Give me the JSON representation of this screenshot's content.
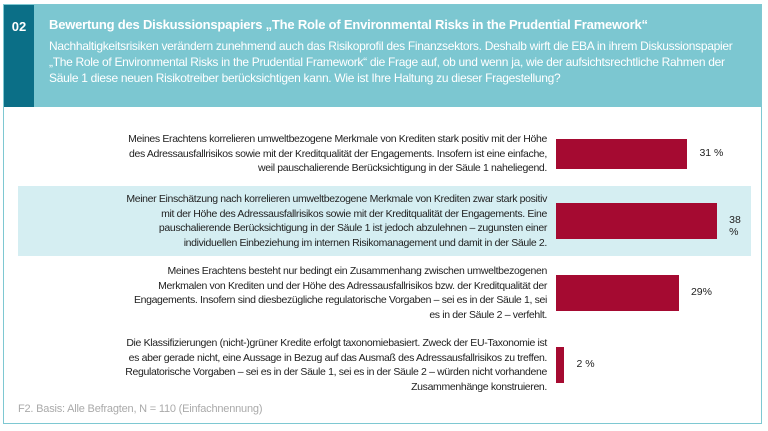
{
  "header": {
    "number": "02",
    "title": "Bewertung des Diskussionspapiers „The Role of Environmental Risks in the Prudential Framework“",
    "subtitle": "Nachhaltigkeitsrisiken verändern zunehmend auch das Risikoprofil des Finanzsektors. Deshalb wirft die EBA in ihrem Diskussionspapier „The Role of Environmental Risks in the Prudential Framework“ die Frage auf, ob und wenn ja, wie der aufsichtsrechtliche Rahmen der Säule 1 diese neuen Risikotreiber berücksichtigen kann. Wie ist Ihre Haltung zu dieser Fragestellung?"
  },
  "chart_data": {
    "type": "bar",
    "orientation": "horizontal",
    "categories": [
      [
        "Meines Erachtens korrelieren umweltbezogene Merkmale von Krediten stark positiv mit der Höhe",
        "des Adressausfallrisikos sowie mit der Kreditqualität der Engagements. Insofern ist eine einfache,",
        "weil pauschalierende Berücksichtigung in der Säule 1 naheliegend."
      ],
      [
        "Meiner Einschätzung nach korrelieren umweltbezogene Merkmale von Krediten zwar stark positiv",
        "mit der Höhe des Adressausfallrisikos sowie mit der Kreditqualität der Engagements. Eine",
        "pauschalierende  Berücksichtigung in der Säule 1 ist jedoch abzulehnen – zugunsten einer",
        "individuellen Einbeziehung im internen Risikomanagement und damit in der Säule 2."
      ],
      [
        "Meines Erachtens besteht nur bedingt ein Zusammenhang zwischen  umweltbezogenen",
        "Merkmalen von Krediten und der Höhe des  Adressausfallrisikos bzw. der Kreditqualität der",
        "Engagements. Insofern sind diesbezügliche regulatorische Vorgaben – sei es in der Säule 1, sei",
        "es in der Säule 2 – verfehlt."
      ],
      [
        "Die Klassifizierungen (nicht-)grüner Kredite erfolgt taxonomiebasiert. Zweck der EU-Taxonomie ist",
        "es aber gerade nicht, eine Aussage in Bezug auf das Ausmaß des Adressausfallrisikos zu treffen.",
        "Regulatorische Vorgaben – sei es in der Säule 1, sei es in der Säule 2 – würden nicht vorhandene",
        "Zusammenhänge konstruieren."
      ]
    ],
    "values": [
      31,
      38,
      29,
      2
    ],
    "value_labels": [
      "31 %",
      "38 %",
      "29%",
      "2 %"
    ],
    "highlighted_index": 1,
    "bar_color": "#a50a31",
    "highlight_color": "#d5eef2"
  },
  "footer": "F2. Basis: Alle Befragten, N = 110 (Einfachnennung)"
}
